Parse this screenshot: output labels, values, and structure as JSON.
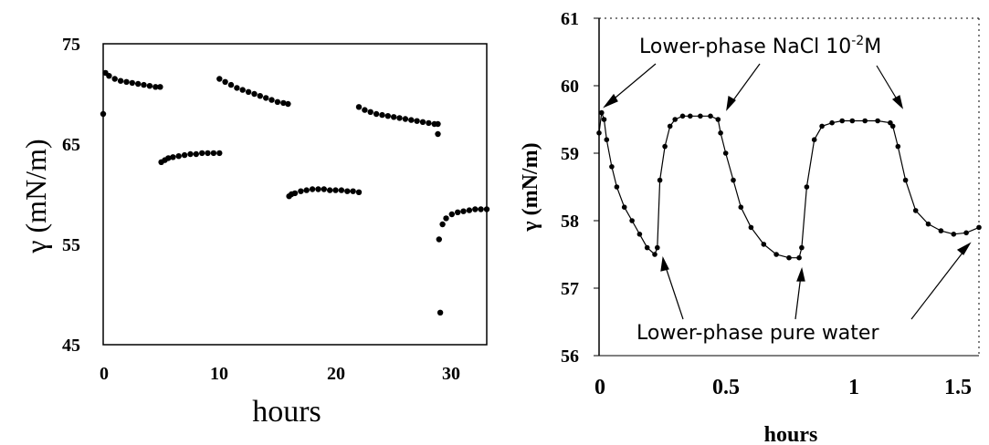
{
  "chart_data": [
    {
      "type": "scatter",
      "xlabel": "hours",
      "ylabel": "γ (mN/m)",
      "xlim": [
        0,
        33
      ],
      "ylim": [
        45,
        75
      ],
      "xticks": [
        "0",
        "10",
        "20",
        "30"
      ],
      "yticks": [
        "45",
        "55",
        "65",
        "75"
      ],
      "grid": false,
      "series": [
        {
          "x": [
            0,
            0.2,
            0.5,
            1,
            1.5,
            2,
            2.5,
            3,
            3.5,
            4,
            4.5,
            4.9,
            5,
            5.3,
            5.6,
            6,
            6.5,
            7,
            7.5,
            8,
            8.5,
            9,
            9.5,
            10,
            10,
            10.5,
            11,
            11.5,
            12,
            12.5,
            13,
            13.5,
            14,
            14.5,
            15,
            15.5,
            15.9,
            16,
            16.2,
            16.5,
            17,
            17.5,
            18,
            18.5,
            19,
            19.5,
            20,
            20.5,
            21,
            21.5,
            22,
            22,
            22.5,
            23,
            23.5,
            24,
            24.5,
            25,
            25.5,
            26,
            26.5,
            27,
            27.5,
            28,
            28.5,
            28.8,
            28.8,
            28.9,
            29,
            29.2,
            29.5,
            30,
            30.5,
            31,
            31.5,
            32,
            32.5,
            33
          ],
          "y": [
            68,
            72.1,
            71.8,
            71.5,
            71.3,
            71.2,
            71.1,
            71,
            70.9,
            70.8,
            70.7,
            70.7,
            63.2,
            63.4,
            63.6,
            63.7,
            63.8,
            63.9,
            64,
            64,
            64.1,
            64.1,
            64.1,
            64.1,
            71.5,
            71.2,
            70.9,
            70.6,
            70.4,
            70.2,
            70,
            69.8,
            69.6,
            69.4,
            69.2,
            69.1,
            69,
            59.8,
            60,
            60.1,
            60.3,
            60.4,
            60.5,
            60.5,
            60.5,
            60.4,
            60.4,
            60.4,
            60.3,
            60.3,
            60.2,
            68.7,
            68.4,
            68.2,
            68,
            67.9,
            67.8,
            67.7,
            67.6,
            67.5,
            67.4,
            67.3,
            67.2,
            67.1,
            67,
            67,
            66,
            55.5,
            48.2,
            57,
            57.6,
            58,
            58.2,
            58.3,
            58.4,
            58.5,
            58.5,
            58.5
          ]
        }
      ]
    },
    {
      "type": "line",
      "xlabel": "hours",
      "ylabel": "γ (mN/m)",
      "xlim": [
        0,
        1.5
      ],
      "ylim": [
        56,
        61
      ],
      "xticks": [
        "0",
        "0.5",
        "1",
        "1.5"
      ],
      "yticks": [
        "56",
        "57",
        "58",
        "59",
        "60",
        "61"
      ],
      "grid": false,
      "series": [
        {
          "x": [
            0,
            0.01,
            0.02,
            0.03,
            0.05,
            0.07,
            0.1,
            0.13,
            0.16,
            0.19,
            0.22,
            0.23,
            0.24,
            0.26,
            0.28,
            0.3,
            0.33,
            0.36,
            0.4,
            0.44,
            0.47,
            0.48,
            0.5,
            0.53,
            0.56,
            0.6,
            0.65,
            0.7,
            0.75,
            0.79,
            0.8,
            0.82,
            0.85,
            0.88,
            0.92,
            0.96,
            1.0,
            1.05,
            1.1,
            1.15,
            1.16,
            1.18,
            1.21,
            1.25,
            1.3,
            1.35,
            1.4,
            1.45,
            1.5
          ],
          "y": [
            59.3,
            59.6,
            59.5,
            59.2,
            58.8,
            58.5,
            58.2,
            58,
            57.8,
            57.6,
            57.5,
            57.6,
            58.6,
            59.1,
            59.4,
            59.5,
            59.55,
            59.55,
            59.55,
            59.55,
            59.5,
            59.3,
            59.0,
            58.6,
            58.2,
            57.9,
            57.65,
            57.5,
            57.45,
            57.45,
            57.6,
            58.5,
            59.2,
            59.4,
            59.45,
            59.48,
            59.48,
            59.48,
            59.48,
            59.45,
            59.4,
            59.1,
            58.6,
            58.15,
            57.95,
            57.85,
            57.8,
            57.82,
            57.9
          ]
        }
      ],
      "annotations": [
        {
          "text_main": "Lower-phase NaCl 10",
          "text_sup": "-2",
          "text_end": "M"
        },
        {
          "text": "Lower-phase pure water"
        }
      ]
    }
  ]
}
